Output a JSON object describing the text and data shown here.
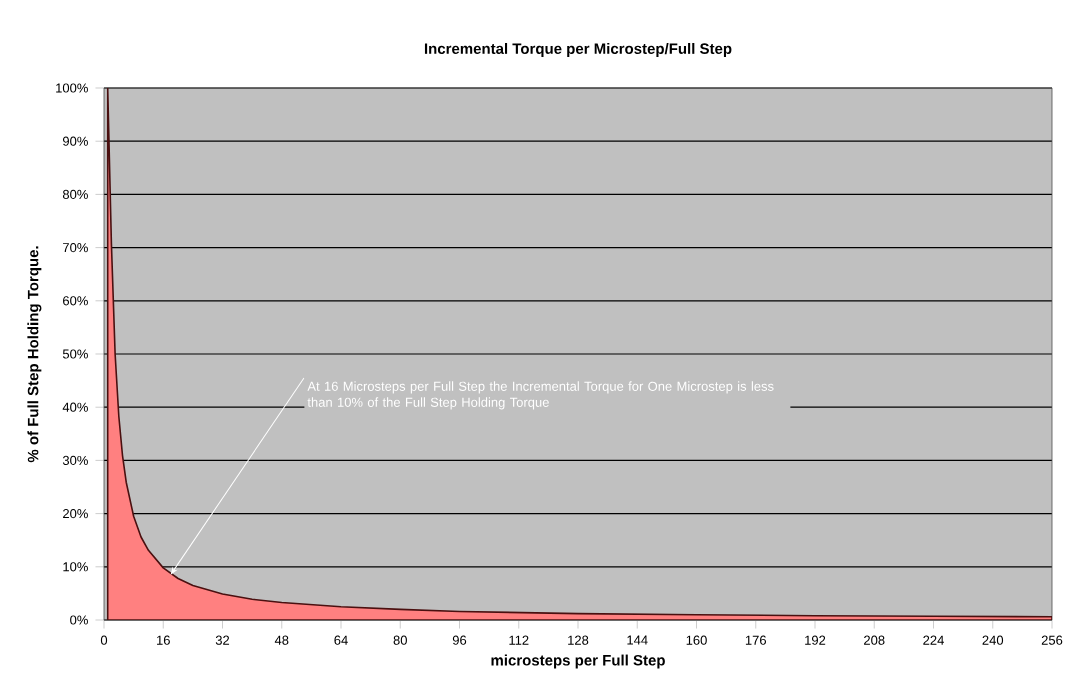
{
  "chart_data": {
    "type": "area",
    "title": "Incremental Torque per Microstep/Full Step",
    "xlabel": "microsteps per Full Step",
    "ylabel": "% of Full Step Holding Torque.",
    "x": [
      1,
      2,
      3,
      4,
      5,
      6,
      8,
      10,
      12,
      16,
      20,
      24,
      32,
      40,
      48,
      64,
      80,
      96,
      128,
      160,
      192,
      224,
      256
    ],
    "series": [
      {
        "color": "#ff8080",
        "values": [
          100,
          70.7,
          50,
          38.3,
          30.9,
          25.9,
          19.5,
          15.6,
          13.1,
          9.8,
          7.8,
          6.5,
          4.9,
          3.9,
          3.3,
          2.5,
          2.0,
          1.6,
          1.2,
          1.0,
          0.8,
          0.7,
          0.6
        ]
      }
    ],
    "annotations": [
      {
        "text": "At 16 Microsteps per Full Step the Incremental Torque for One Microstep is less than 10% of the Full Step Holding Torque",
        "x": 18,
        "y": 8.5
      }
    ],
    "xlim": [
      0,
      256
    ],
    "ylim": [
      0,
      100
    ],
    "xticks": [
      0,
      16,
      32,
      48,
      64,
      80,
      96,
      112,
      128,
      144,
      160,
      176,
      192,
      208,
      224,
      240,
      256
    ],
    "yticks": [
      {
        "value": 0,
        "label": "0%"
      },
      {
        "value": 10,
        "label": "10%"
      },
      {
        "value": 20,
        "label": "20%"
      },
      {
        "value": 30,
        "label": "30%"
      },
      {
        "value": 40,
        "label": "40%"
      },
      {
        "value": 50,
        "label": "50%"
      },
      {
        "value": 60,
        "label": "60%"
      },
      {
        "value": 70,
        "label": "70%"
      },
      {
        "value": 80,
        "label": "80%"
      },
      {
        "value": 90,
        "label": "90%"
      },
      {
        "value": 100,
        "label": "100%"
      }
    ],
    "grid": "y"
  }
}
